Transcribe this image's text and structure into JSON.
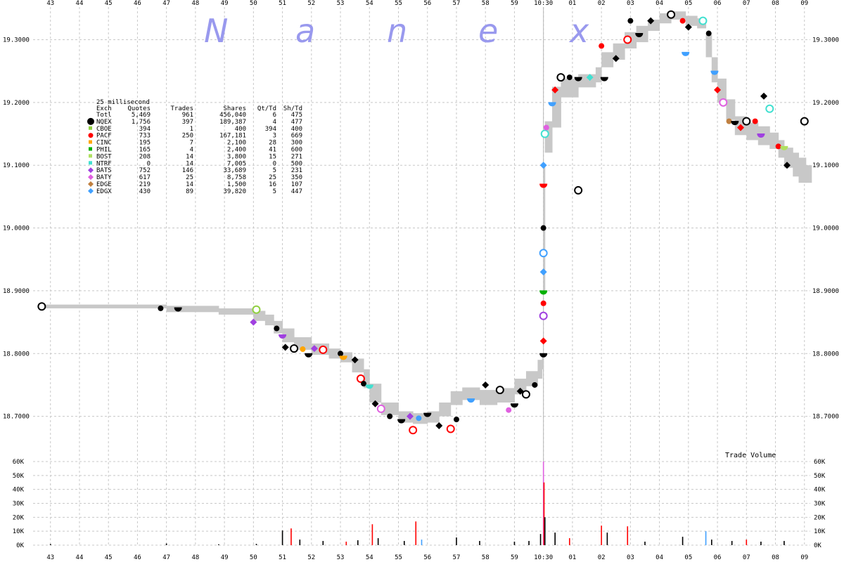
{
  "watermark": [
    "N",
    "a",
    "n",
    "e",
    "x"
  ],
  "colors": {
    "grid": "#c8c8c8",
    "nbbo_band": "#c8c8c8",
    "NQEX": "#000000",
    "CBOE": "#90d040",
    "PACF": "#ff0000",
    "CINC": "#ffa500",
    "PHIL": "#00b000",
    "BOST": "#b0e060",
    "NTRF": "#40e0d0",
    "BATS": "#a040e0",
    "BATY": "#e060e0",
    "EDGE": "#c08040",
    "EDGX": "#40a0ff"
  },
  "legend": {
    "title": "25 millisecond",
    "headers": [
      "Exch",
      "Quotes",
      "Trades",
      "Shares",
      "Qt/Td",
      "Sh/Td"
    ],
    "rows": [
      {
        "exch": "Totl",
        "quotes": "5,469",
        "trades": "961",
        "shares": "456,040",
        "qt_td": "6",
        "sh_td": "475"
      },
      {
        "exch": "NQEX",
        "quotes": "1,756",
        "trades": "397",
        "shares": "189,387",
        "qt_td": "4",
        "sh_td": "477"
      },
      {
        "exch": "CBOE",
        "quotes": "394",
        "trades": "1",
        "shares": "400",
        "qt_td": "394",
        "sh_td": "400"
      },
      {
        "exch": "PACF",
        "quotes": "733",
        "trades": "250",
        "shares": "167,181",
        "qt_td": "3",
        "sh_td": "669"
      },
      {
        "exch": "CINC",
        "quotes": "195",
        "trades": "7",
        "shares": "2,100",
        "qt_td": "28",
        "sh_td": "300"
      },
      {
        "exch": "PHIL",
        "quotes": "165",
        "trades": "4",
        "shares": "2,400",
        "qt_td": "41",
        "sh_td": "600"
      },
      {
        "exch": "BOST",
        "quotes": "208",
        "trades": "14",
        "shares": "3,800",
        "qt_td": "15",
        "sh_td": "271"
      },
      {
        "exch": "NTRF",
        "quotes": "0",
        "trades": "14",
        "shares": "7,005",
        "qt_td": "0",
        "sh_td": "500"
      },
      {
        "exch": "BATS",
        "quotes": "752",
        "trades": "146",
        "shares": "33,689",
        "qt_td": "5",
        "sh_td": "231"
      },
      {
        "exch": "BATY",
        "quotes": "617",
        "trades": "25",
        "shares": "8,758",
        "qt_td": "25",
        "sh_td": "350"
      },
      {
        "exch": "EDGE",
        "quotes": "219",
        "trades": "14",
        "shares": "1,500",
        "qt_td": "16",
        "sh_td": "107"
      },
      {
        "exch": "EDGX",
        "quotes": "430",
        "trades": "89",
        "shares": "39,820",
        "qt_td": "5",
        "sh_td": "447"
      }
    ]
  },
  "chart_data": [
    {
      "type": "scatter",
      "x_ticks": [
        "43",
        "44",
        "45",
        "46",
        "47",
        "48",
        "49",
        "50",
        "51",
        "52",
        "53",
        "54",
        "55",
        "56",
        "57",
        "58",
        "59",
        "10:30",
        "01",
        "02",
        "03",
        "04",
        "05",
        "06",
        "07",
        "08",
        "09"
      ],
      "y_ticks": [
        "18.7000",
        "18.8000",
        "18.9000",
        "19.0000",
        "19.1000",
        "19.2000",
        "19.3000"
      ],
      "ylim": [
        18.647,
        19.352
      ],
      "xlim_minutes": [
        -17.6,
        9.2
      ],
      "grid": true,
      "nbbo_band": [
        [
          -17.4,
          18.872,
          18.878
        ],
        [
          -13.2,
          18.872,
          18.878
        ],
        [
          -13.0,
          18.866,
          18.876
        ],
        [
          -11.2,
          18.862,
          18.872
        ],
        [
          -10.0,
          18.852,
          18.868
        ],
        [
          -9.6,
          18.845,
          18.862
        ],
        [
          -9.3,
          18.832,
          18.852
        ],
        [
          -9.0,
          18.818,
          18.84
        ],
        [
          -8.6,
          18.806,
          18.826
        ],
        [
          -8.0,
          18.798,
          18.816
        ],
        [
          -7.4,
          18.792,
          18.808
        ],
        [
          -7.0,
          18.786,
          18.802
        ],
        [
          -6.6,
          18.77,
          18.792
        ],
        [
          -6.2,
          18.745,
          18.775
        ],
        [
          -6.0,
          18.722,
          18.752
        ],
        [
          -5.6,
          18.702,
          18.722
        ],
        [
          -5.0,
          18.69,
          18.708
        ],
        [
          -4.5,
          18.688,
          18.705
        ],
        [
          -4.0,
          18.69,
          18.708
        ],
        [
          -3.6,
          18.7,
          18.722
        ],
        [
          -3.2,
          18.718,
          18.74
        ],
        [
          -2.8,
          18.726,
          18.746
        ],
        [
          -2.2,
          18.718,
          18.742
        ],
        [
          -1.6,
          18.722,
          18.745
        ],
        [
          -1.0,
          18.735,
          18.76
        ],
        [
          -0.6,
          18.748,
          18.772
        ],
        [
          -0.2,
          18.76,
          18.79
        ],
        [
          -0.05,
          18.775,
          18.8
        ],
        [
          0.0,
          18.9,
          19.1
        ],
        [
          0.05,
          19.12,
          19.17
        ],
        [
          0.3,
          19.16,
          19.225
        ],
        [
          0.6,
          19.208,
          19.238
        ],
        [
          1.2,
          19.224,
          19.245
        ],
        [
          1.8,
          19.232,
          19.256
        ],
        [
          2.0,
          19.256,
          19.28
        ],
        [
          2.4,
          19.268,
          19.294
        ],
        [
          2.8,
          19.286,
          19.312
        ],
        [
          3.2,
          19.296,
          19.322
        ],
        [
          3.6,
          19.314,
          19.332
        ],
        [
          4.0,
          19.326,
          19.342
        ],
        [
          4.4,
          19.332,
          19.345
        ],
        [
          4.9,
          19.322,
          19.338
        ],
        [
          5.3,
          19.318,
          19.334
        ],
        [
          5.6,
          19.272,
          19.308
        ],
        [
          5.8,
          19.232,
          19.272
        ],
        [
          6.0,
          19.2,
          19.238
        ],
        [
          6.3,
          19.172,
          19.205
        ],
        [
          6.6,
          19.148,
          19.178
        ],
        [
          7.0,
          19.14,
          19.168
        ],
        [
          7.4,
          19.132,
          19.162
        ],
        [
          7.8,
          19.126,
          19.152
        ],
        [
          8.1,
          19.112,
          19.14
        ],
        [
          8.3,
          19.096,
          19.128
        ],
        [
          8.6,
          19.082,
          19.12
        ],
        [
          8.8,
          19.072,
          19.112
        ],
        [
          9.05,
          19.072,
          19.1
        ]
      ],
      "quotes": [
        {
          "x": -17.3,
          "y": 18.875,
          "exch": "NQEX"
        },
        {
          "x": -13.2,
          "y": 18.872,
          "exch": "NQEX"
        },
        {
          "x": -12.6,
          "y": 18.873,
          "exch": "NQEX"
        },
        {
          "x": -10.0,
          "y": 18.85,
          "exch": "BATS"
        },
        {
          "x": -9.9,
          "y": 18.87,
          "exch": "CBOE"
        },
        {
          "x": -9.2,
          "y": 18.84,
          "exch": "NQEX"
        },
        {
          "x": -9.0,
          "y": 18.83,
          "exch": "BATS"
        },
        {
          "x": -8.9,
          "y": 18.81,
          "exch": "NQEX"
        },
        {
          "x": -8.6,
          "y": 18.808,
          "exch": "NQEX"
        },
        {
          "x": -8.3,
          "y": 18.807,
          "exch": "CINC"
        },
        {
          "x": -8.1,
          "y": 18.8,
          "exch": "NQEX"
        },
        {
          "x": -7.9,
          "y": 18.808,
          "exch": "BATS"
        },
        {
          "x": -7.6,
          "y": 18.806,
          "exch": "PACF"
        },
        {
          "x": -7.0,
          "y": 18.8,
          "exch": "NQEX"
        },
        {
          "x": -6.9,
          "y": 18.796,
          "exch": "CINC"
        },
        {
          "x": -6.5,
          "y": 18.79,
          "exch": "NQEX"
        },
        {
          "x": -6.3,
          "y": 18.76,
          "exch": "PACF"
        },
        {
          "x": -6.2,
          "y": 18.752,
          "exch": "NQEX"
        },
        {
          "x": -6.0,
          "y": 18.75,
          "exch": "NTRF"
        },
        {
          "x": -5.8,
          "y": 18.72,
          "exch": "NQEX"
        },
        {
          "x": -5.6,
          "y": 18.712,
          "exch": "BATY"
        },
        {
          "x": -5.3,
          "y": 18.7,
          "exch": "NQEX"
        },
        {
          "x": -4.9,
          "y": 18.695,
          "exch": "NQEX"
        },
        {
          "x": -4.6,
          "y": 18.7,
          "exch": "BATS"
        },
        {
          "x": -4.5,
          "y": 18.678,
          "exch": "PACF"
        },
        {
          "x": -4.3,
          "y": 18.697,
          "exch": "EDGX"
        },
        {
          "x": -4.0,
          "y": 18.705,
          "exch": "NQEX"
        },
        {
          "x": -3.6,
          "y": 18.685,
          "exch": "NQEX"
        },
        {
          "x": -3.2,
          "y": 18.68,
          "exch": "PACF"
        },
        {
          "x": -3.0,
          "y": 18.695,
          "exch": "NQEX"
        },
        {
          "x": -2.5,
          "y": 18.728,
          "exch": "EDGX"
        },
        {
          "x": -2.0,
          "y": 18.75,
          "exch": "NQEX"
        },
        {
          "x": -1.5,
          "y": 18.742,
          "exch": "NQEX"
        },
        {
          "x": -1.2,
          "y": 18.71,
          "exch": "BATY"
        },
        {
          "x": -1.0,
          "y": 18.72,
          "exch": "NQEX"
        },
        {
          "x": -0.8,
          "y": 18.74,
          "exch": "NQEX"
        },
        {
          "x": -0.6,
          "y": 18.735,
          "exch": "NQEX"
        },
        {
          "x": -0.3,
          "y": 18.75,
          "exch": "NQEX"
        },
        {
          "x": 0.0,
          "y": 18.8,
          "exch": "NQEX"
        },
        {
          "x": 0.0,
          "y": 18.82,
          "exch": "PACF"
        },
        {
          "x": 0.0,
          "y": 18.86,
          "exch": "BATS"
        },
        {
          "x": 0.0,
          "y": 18.88,
          "exch": "PACF"
        },
        {
          "x": 0.0,
          "y": 18.9,
          "exch": "PHIL"
        },
        {
          "x": 0.0,
          "y": 18.93,
          "exch": "EDGX"
        },
        {
          "x": 0.0,
          "y": 18.96,
          "exch": "EDGX"
        },
        {
          "x": 0.0,
          "y": 19.0,
          "exch": "NQEX"
        },
        {
          "x": 0.0,
          "y": 19.07,
          "exch": "PACF"
        },
        {
          "x": 0.0,
          "y": 19.1,
          "exch": "EDGX"
        },
        {
          "x": 0.05,
          "y": 19.15,
          "exch": "NTRF"
        },
        {
          "x": 0.1,
          "y": 19.16,
          "exch": "BATY"
        },
        {
          "x": 0.3,
          "y": 19.2,
          "exch": "EDGX"
        },
        {
          "x": 0.4,
          "y": 19.22,
          "exch": "PACF"
        },
        {
          "x": 0.6,
          "y": 19.24,
          "exch": "NQEX"
        },
        {
          "x": 0.9,
          "y": 19.24,
          "exch": "NQEX"
        },
        {
          "x": 1.2,
          "y": 19.24,
          "exch": "NQEX"
        },
        {
          "x": 1.6,
          "y": 19.24,
          "exch": "NTRF"
        },
        {
          "x": 1.2,
          "y": 19.06,
          "exch": "NQEX"
        },
        {
          "x": 2.0,
          "y": 19.29,
          "exch": "PACF"
        },
        {
          "x": 2.1,
          "y": 19.24,
          "exch": "NQEX"
        },
        {
          "x": 2.5,
          "y": 19.27,
          "exch": "NQEX"
        },
        {
          "x": 2.9,
          "y": 19.3,
          "exch": "PACF"
        },
        {
          "x": 3.0,
          "y": 19.33,
          "exch": "NQEX"
        },
        {
          "x": 3.3,
          "y": 19.31,
          "exch": "NQEX"
        },
        {
          "x": 3.7,
          "y": 19.33,
          "exch": "NQEX"
        },
        {
          "x": 4.4,
          "y": 19.34,
          "exch": "NQEX"
        },
        {
          "x": 4.8,
          "y": 19.33,
          "exch": "PACF"
        },
        {
          "x": 4.9,
          "y": 19.28,
          "exch": "EDGX"
        },
        {
          "x": 5.0,
          "y": 19.32,
          "exch": "NQEX"
        },
        {
          "x": 5.5,
          "y": 19.33,
          "exch": "NTRF"
        },
        {
          "x": 5.7,
          "y": 19.31,
          "exch": "NQEX"
        },
        {
          "x": 5.9,
          "y": 19.25,
          "exch": "EDGX"
        },
        {
          "x": 6.0,
          "y": 19.22,
          "exch": "PACF"
        },
        {
          "x": 6.2,
          "y": 19.2,
          "exch": "BATY"
        },
        {
          "x": 6.4,
          "y": 19.17,
          "exch": "EDGE"
        },
        {
          "x": 6.6,
          "y": 19.17,
          "exch": "NQEX"
        },
        {
          "x": 6.8,
          "y": 19.16,
          "exch": "PACF"
        },
        {
          "x": 7.0,
          "y": 19.17,
          "exch": "NQEX"
        },
        {
          "x": 7.3,
          "y": 19.17,
          "exch": "PACF"
        },
        {
          "x": 7.5,
          "y": 19.15,
          "exch": "BATS"
        },
        {
          "x": 7.6,
          "y": 19.21,
          "exch": "NQEX"
        },
        {
          "x": 7.8,
          "y": 19.19,
          "exch": "NTRF"
        },
        {
          "x": 8.1,
          "y": 19.13,
          "exch": "PACF"
        },
        {
          "x": 8.3,
          "y": 19.13,
          "exch": "BOST"
        },
        {
          "x": 8.4,
          "y": 19.1,
          "exch": "NQEX"
        },
        {
          "x": 9.0,
          "y": 19.17,
          "exch": "NQEX"
        }
      ]
    },
    {
      "type": "bar",
      "title": "Trade Volume",
      "y_ticks": [
        "0K",
        "10K",
        "20K",
        "30K",
        "40K",
        "50K",
        "60K"
      ],
      "ylim": [
        0,
        60000
      ],
      "bars": [
        {
          "x": -17.0,
          "v": 800,
          "exch": "NQEX"
        },
        {
          "x": -13.0,
          "v": 1200,
          "exch": "NQEX"
        },
        {
          "x": -11.2,
          "v": 600,
          "exch": "NQEX"
        },
        {
          "x": -9.9,
          "v": 900,
          "exch": "NQEX"
        },
        {
          "x": -9.0,
          "v": 10500,
          "exch": "NQEX"
        },
        {
          "x": -8.7,
          "v": 12000,
          "exch": "PACF"
        },
        {
          "x": -8.4,
          "v": 4000,
          "exch": "NQEX"
        },
        {
          "x": -7.6,
          "v": 3000,
          "exch": "NQEX"
        },
        {
          "x": -6.8,
          "v": 2500,
          "exch": "PACF"
        },
        {
          "x": -6.4,
          "v": 3500,
          "exch": "NQEX"
        },
        {
          "x": -5.9,
          "v": 15000,
          "exch": "PACF"
        },
        {
          "x": -5.7,
          "v": 5000,
          "exch": "NQEX"
        },
        {
          "x": -4.8,
          "v": 3000,
          "exch": "NQEX"
        },
        {
          "x": -4.4,
          "v": 17000,
          "exch": "PACF"
        },
        {
          "x": -4.2,
          "v": 4000,
          "exch": "EDGX"
        },
        {
          "x": -3.0,
          "v": 5500,
          "exch": "NQEX"
        },
        {
          "x": -2.2,
          "v": 3000,
          "exch": "NQEX"
        },
        {
          "x": -1.0,
          "v": 2500,
          "exch": "NQEX"
        },
        {
          "x": -0.5,
          "v": 3000,
          "exch": "NQEX"
        },
        {
          "x": -0.1,
          "v": 8000,
          "exch": "NQEX"
        },
        {
          "x": 0.0,
          "v": 60000,
          "exch": "BATY"
        },
        {
          "x": 0.02,
          "v": 45000,
          "exch": "PACF"
        },
        {
          "x": 0.05,
          "v": 20000,
          "exch": "NQEX"
        },
        {
          "x": 0.4,
          "v": 9000,
          "exch": "NQEX"
        },
        {
          "x": 0.9,
          "v": 5000,
          "exch": "PACF"
        },
        {
          "x": 2.0,
          "v": 14000,
          "exch": "PACF"
        },
        {
          "x": 2.2,
          "v": 9000,
          "exch": "NQEX"
        },
        {
          "x": 2.9,
          "v": 13500,
          "exch": "PACF"
        },
        {
          "x": 3.5,
          "v": 2500,
          "exch": "NQEX"
        },
        {
          "x": 4.8,
          "v": 6000,
          "exch": "NQEX"
        },
        {
          "x": 5.6,
          "v": 10000,
          "exch": "EDGX"
        },
        {
          "x": 5.8,
          "v": 4000,
          "exch": "NQEX"
        },
        {
          "x": 6.5,
          "v": 3000,
          "exch": "NQEX"
        },
        {
          "x": 7.0,
          "v": 4000,
          "exch": "PACF"
        },
        {
          "x": 7.5,
          "v": 2500,
          "exch": "NQEX"
        },
        {
          "x": 8.3,
          "v": 3000,
          "exch": "NQEX"
        }
      ]
    }
  ]
}
